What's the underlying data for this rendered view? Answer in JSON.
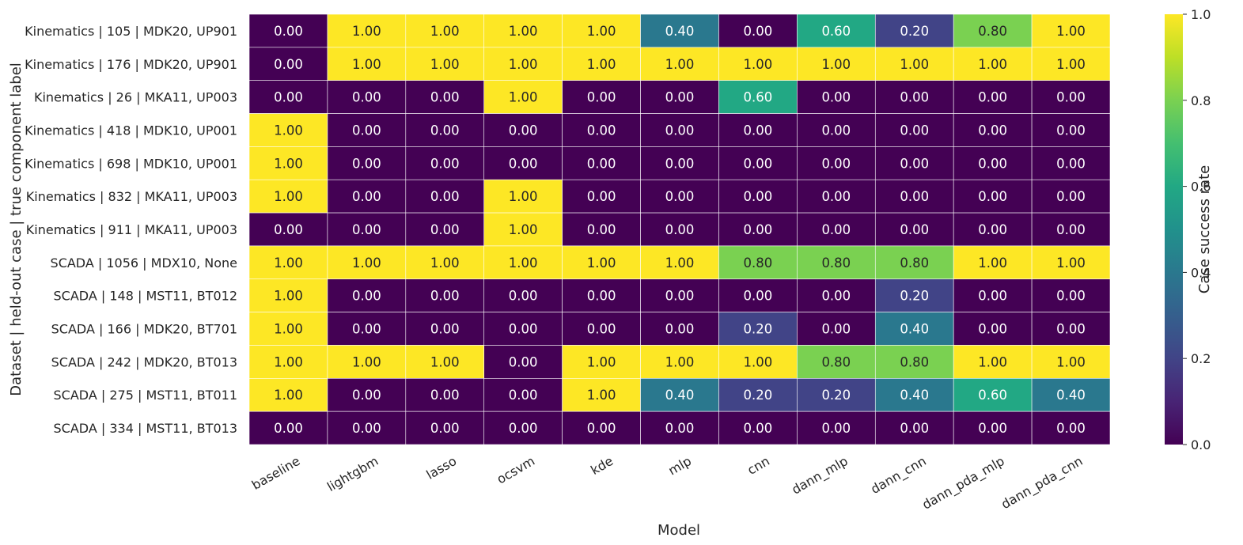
{
  "chart_data": {
    "type": "heatmap",
    "title": "",
    "xlabel": "Model",
    "ylabel": "Dataset | held-out case | true component label",
    "colorbar": {
      "label": "Case success rate",
      "range": [
        0.0,
        1.0
      ],
      "ticks": [
        "0.0",
        "0.2",
        "0.4",
        "0.6",
        "0.8",
        "1.0"
      ],
      "colormap": "viridis",
      "placement": "right"
    },
    "columns": [
      "baseline",
      "lightgbm",
      "lasso",
      "ocsvm",
      "kde",
      "mlp",
      "cnn",
      "dann_mlp",
      "dann_cnn",
      "dann_pda_mlp",
      "dann_pda_cnn"
    ],
    "rows": [
      "Kinematics | 105 | MDK20, UP901",
      "Kinematics | 176 | MDK20, UP901",
      "Kinematics | 26 | MKA11, UP003",
      "Kinematics | 418 | MDK10, UP001",
      "Kinematics | 698 | MDK10, UP001",
      "Kinematics | 832 | MKA11, UP003",
      "Kinematics | 911 | MKA11, UP003",
      "SCADA | 1056 | MDX10, None",
      "SCADA | 148 | MST11, BT012",
      "SCADA | 166 | MDK20, BT701",
      "SCADA | 242 | MDK20, BT013",
      "SCADA | 275 | MST11, BT011",
      "SCADA | 334 | MST11, BT013"
    ],
    "values": [
      [
        0.0,
        1.0,
        1.0,
        1.0,
        1.0,
        0.4,
        0.0,
        0.6,
        0.2,
        0.8,
        1.0
      ],
      [
        0.0,
        1.0,
        1.0,
        1.0,
        1.0,
        1.0,
        1.0,
        1.0,
        1.0,
        1.0,
        1.0
      ],
      [
        0.0,
        0.0,
        0.0,
        1.0,
        0.0,
        0.0,
        0.6,
        0.0,
        0.0,
        0.0,
        0.0
      ],
      [
        1.0,
        0.0,
        0.0,
        0.0,
        0.0,
        0.0,
        0.0,
        0.0,
        0.0,
        0.0,
        0.0
      ],
      [
        1.0,
        0.0,
        0.0,
        0.0,
        0.0,
        0.0,
        0.0,
        0.0,
        0.0,
        0.0,
        0.0
      ],
      [
        1.0,
        0.0,
        0.0,
        1.0,
        0.0,
        0.0,
        0.0,
        0.0,
        0.0,
        0.0,
        0.0
      ],
      [
        0.0,
        0.0,
        0.0,
        1.0,
        0.0,
        0.0,
        0.0,
        0.0,
        0.0,
        0.0,
        0.0
      ],
      [
        1.0,
        1.0,
        1.0,
        1.0,
        1.0,
        1.0,
        0.8,
        0.8,
        0.8,
        1.0,
        1.0
      ],
      [
        1.0,
        0.0,
        0.0,
        0.0,
        0.0,
        0.0,
        0.0,
        0.0,
        0.2,
        0.0,
        0.0
      ],
      [
        1.0,
        0.0,
        0.0,
        0.0,
        0.0,
        0.0,
        0.2,
        0.0,
        0.4,
        0.0,
        0.0
      ],
      [
        1.0,
        1.0,
        1.0,
        0.0,
        1.0,
        1.0,
        1.0,
        0.8,
        0.8,
        1.0,
        1.0
      ],
      [
        1.0,
        0.0,
        0.0,
        0.0,
        1.0,
        0.4,
        0.2,
        0.2,
        0.4,
        0.6,
        0.4
      ],
      [
        0.0,
        0.0,
        0.0,
        0.0,
        0.0,
        0.0,
        0.0,
        0.0,
        0.0,
        0.0,
        0.0
      ]
    ],
    "value_format": "0.00",
    "grid": false
  }
}
